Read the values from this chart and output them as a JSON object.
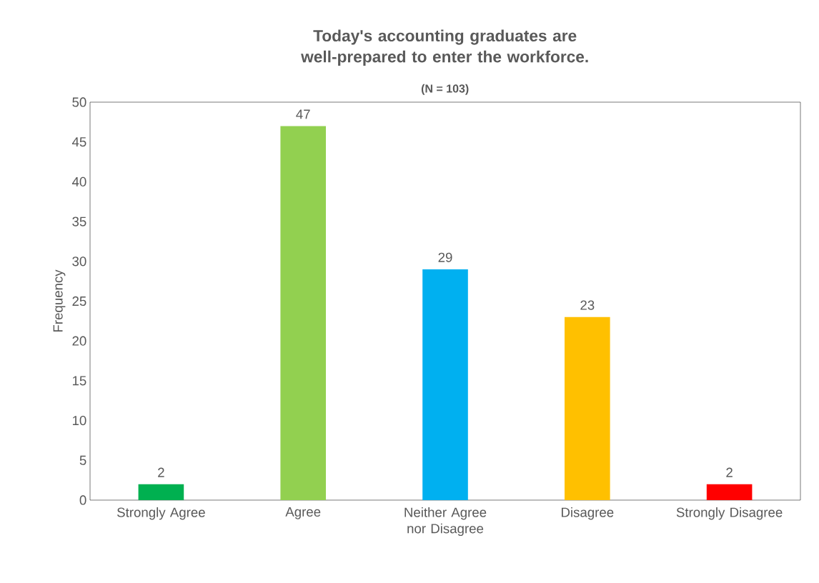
{
  "chart_data": {
    "type": "bar",
    "title": "Today's accounting graduates are well-prepared to enter the workforce.",
    "subtitle": "(N = 103)",
    "ylabel": "Frequency",
    "categories": [
      "Strongly Agree",
      "Agree",
      "Neither Agree nor Disagree",
      "Disagree",
      "Strongly Disagree"
    ],
    "values": [
      2,
      47,
      29,
      23,
      2
    ],
    "colors": [
      "#00b050",
      "#92d050",
      "#00b0f0",
      "#ffc000",
      "#ff0000"
    ],
    "ylim": [
      0,
      50
    ],
    "yticks": [
      0,
      5,
      10,
      15,
      20,
      25,
      30,
      35,
      40,
      45,
      50
    ],
    "data_labels": true
  }
}
